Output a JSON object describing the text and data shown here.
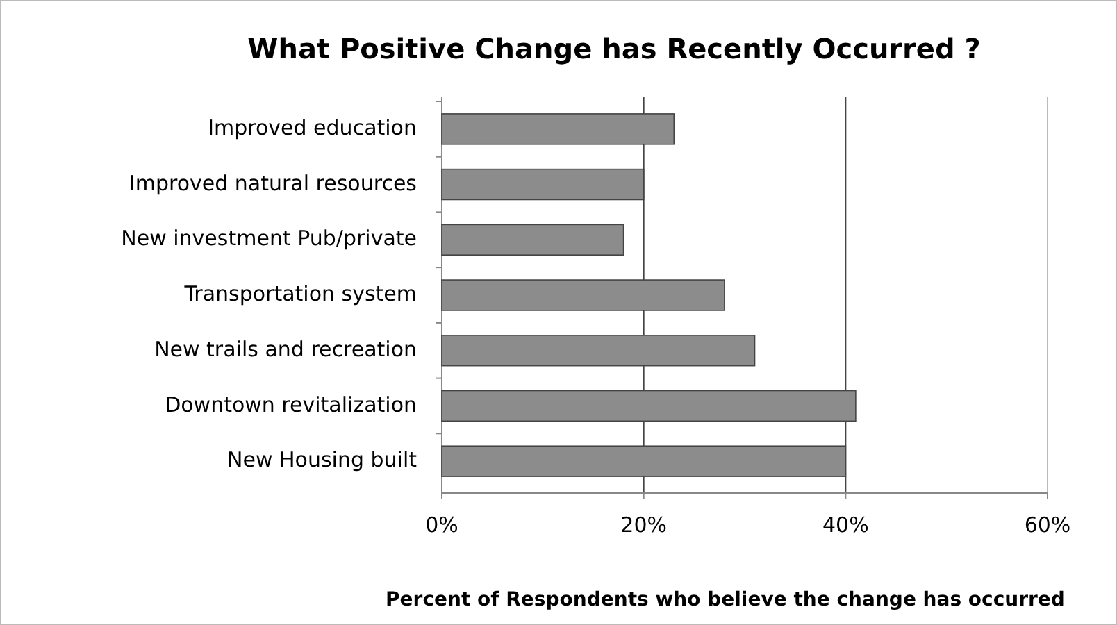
{
  "chart_data": {
    "type": "bar",
    "orientation": "horizontal",
    "title": "What Positive Change has Recently Occurred ?",
    "xlabel": "Percent of Respondents who believe the change has occurred",
    "categories": [
      "Improved education",
      "Improved natural resources",
      "New investment Pub/private",
      "Transportation system",
      "New trails and recreation",
      "Downtown revitalization",
      "New Housing built"
    ],
    "values": [
      23,
      20,
      18,
      28,
      31,
      41,
      40
    ],
    "color": "#8c8c8c",
    "xlim": [
      0,
      60
    ],
    "xticks": [
      {
        "value": 0,
        "label": "0%"
      },
      {
        "value": 20,
        "label": "20%"
      },
      {
        "value": 40,
        "label": "40%"
      },
      {
        "value": 60,
        "label": "60%"
      }
    ],
    "grid": "x"
  }
}
